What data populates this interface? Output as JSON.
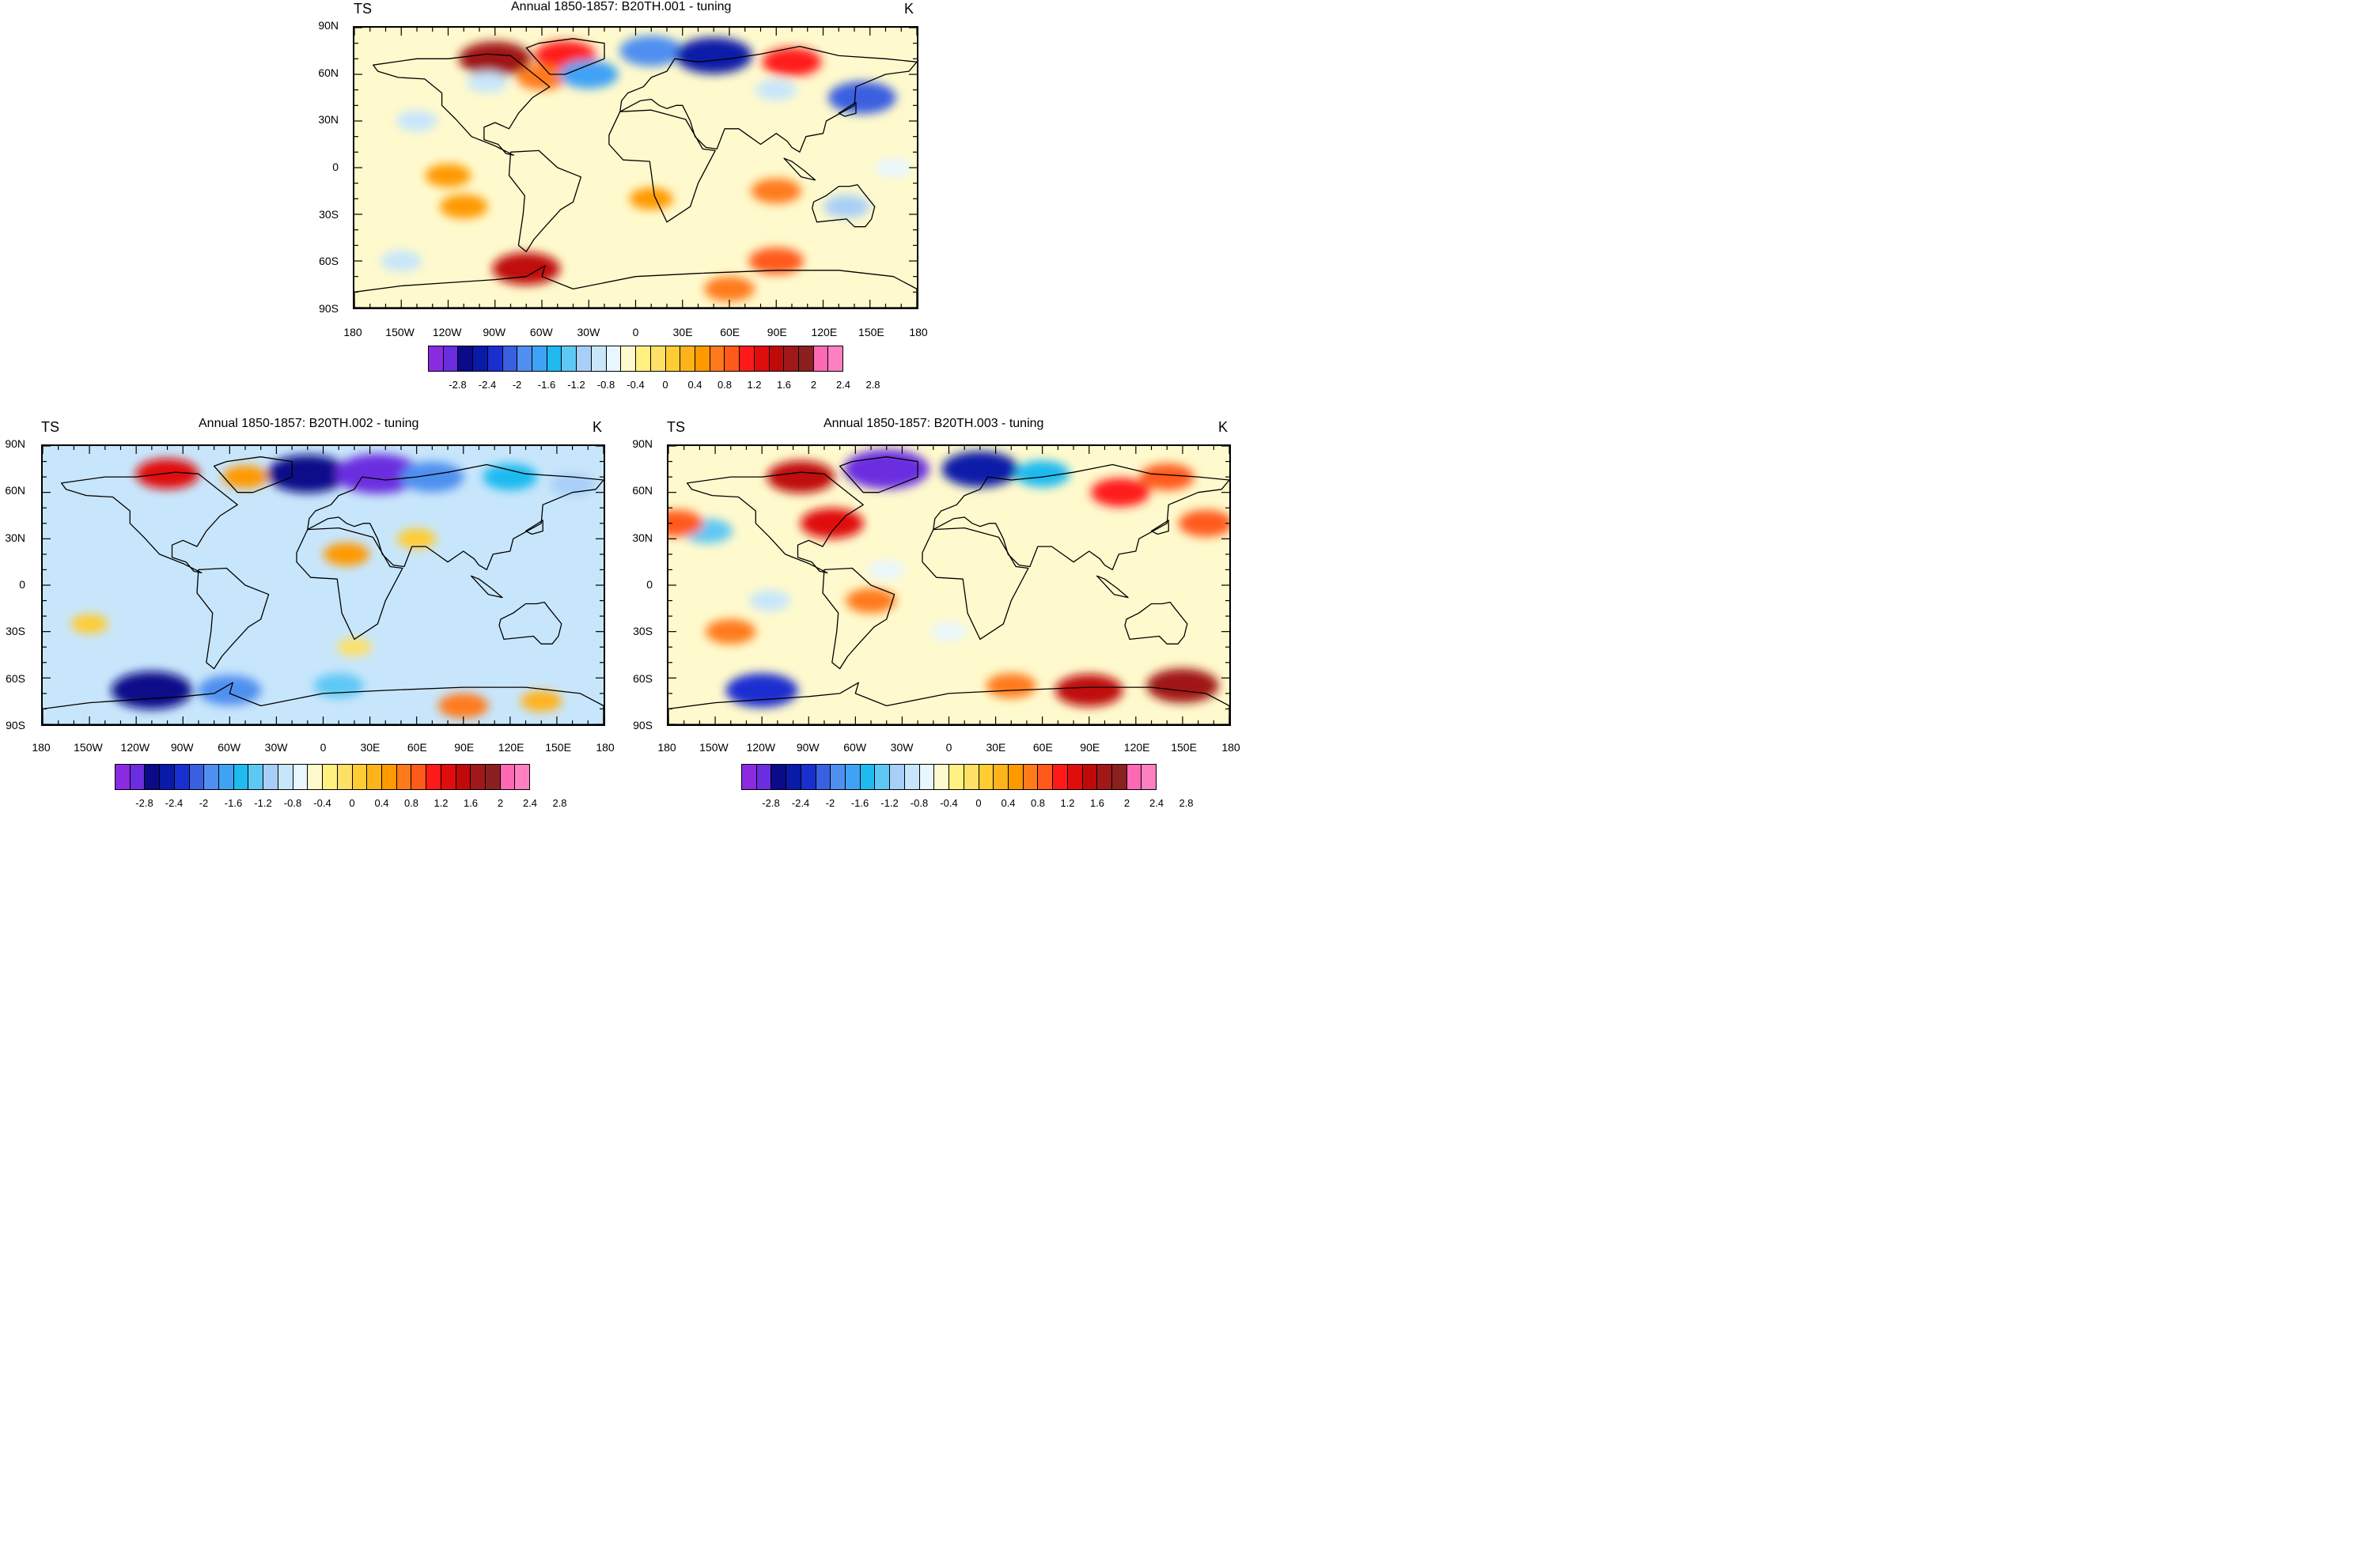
{
  "figure": {
    "colormap": [
      "#8a2be2",
      "#6a2de0",
      "#0a0a8a",
      "#0a1aa8",
      "#1a2fd0",
      "#3a5fe0",
      "#4f8ff0",
      "#3fa3f5",
      "#1fbaf0",
      "#5ec8f5",
      "#a8cff8",
      "#c8e6fb",
      "#e8f6fd",
      "#fffacd",
      "#fff080",
      "#ffe066",
      "#ffcc33",
      "#ffb31a",
      "#ff9900",
      "#ff7a1a",
      "#ff5a1a",
      "#ff1a1a",
      "#e00d0d",
      "#c00a0a",
      "#a01818",
      "#8b2020",
      "#ff69b4",
      "#ff80c0"
    ],
    "colorbar_labels": [
      "-2.8",
      "-2.4",
      "-2",
      "-1.6",
      "-1.2",
      "-0.8",
      "-0.4",
      "0",
      "0.4",
      "0.8",
      "1.2",
      "1.6",
      "2",
      "2.4",
      "2.8"
    ],
    "lat_labels": [
      "90N",
      "60N",
      "30N",
      "0",
      "30S",
      "60S",
      "90S"
    ],
    "lon_labels": [
      "180",
      "150W",
      "120W",
      "90W",
      "60W",
      "30W",
      "0",
      "30E",
      "60E",
      "90E",
      "120E",
      "150E",
      "180"
    ]
  },
  "panels": [
    {
      "id": "p1",
      "variable": "TS",
      "title": "Annual 1850-1857: B20TH.001 - tuning",
      "units": "K",
      "field": {
        "base": "#fffacd",
        "anomalies": [
          {
            "lon": -90,
            "lat": 70,
            "value": 2.0
          },
          {
            "lon": -45,
            "lat": 72,
            "value": 1.5
          },
          {
            "lon": -95,
            "lat": 55,
            "value": -0.6
          },
          {
            "lon": -60,
            "lat": 58,
            "value": 1.0
          },
          {
            "lon": -30,
            "lat": 60,
            "value": -1.4
          },
          {
            "lon": 10,
            "lat": 75,
            "value": -1.6
          },
          {
            "lon": 50,
            "lat": 72,
            "value": -2.2
          },
          {
            "lon": 100,
            "lat": 68,
            "value": 1.4
          },
          {
            "lon": 90,
            "lat": 50,
            "value": -0.6
          },
          {
            "lon": 145,
            "lat": 45,
            "value": -1.8
          },
          {
            "lon": -140,
            "lat": 30,
            "value": -0.6
          },
          {
            "lon": -120,
            "lat": -5,
            "value": 0.8
          },
          {
            "lon": -110,
            "lat": -25,
            "value": 0.9
          },
          {
            "lon": 10,
            "lat": -20,
            "value": 0.7
          },
          {
            "lon": 90,
            "lat": -15,
            "value": 1.0
          },
          {
            "lon": 135,
            "lat": -25,
            "value": -0.8
          },
          {
            "lon": -70,
            "lat": -65,
            "value": 1.8
          },
          {
            "lon": 90,
            "lat": -60,
            "value": 1.2
          },
          {
            "lon": 60,
            "lat": -78,
            "value": 1.0
          },
          {
            "lon": -150,
            "lat": -60,
            "value": -0.6
          },
          {
            "lon": 165,
            "lat": 0,
            "value": -0.4
          }
        ]
      }
    },
    {
      "id": "p2",
      "variable": "TS",
      "title": "Annual 1850-1857: B20TH.002 - tuning",
      "units": "K",
      "field": {
        "base": "#c8e6fb",
        "anomalies": [
          {
            "lon": -100,
            "lat": 72,
            "value": 1.6
          },
          {
            "lon": -50,
            "lat": 70,
            "value": 0.8
          },
          {
            "lon": -10,
            "lat": 72,
            "value": -2.4
          },
          {
            "lon": 35,
            "lat": 72,
            "value": -2.6
          },
          {
            "lon": 70,
            "lat": 70,
            "value": -1.6
          },
          {
            "lon": 120,
            "lat": 70,
            "value": -1.2
          },
          {
            "lon": 160,
            "lat": 65,
            "value": -0.8
          },
          {
            "lon": 15,
            "lat": 20,
            "value": 0.8
          },
          {
            "lon": 60,
            "lat": 30,
            "value": 0.5
          },
          {
            "lon": -150,
            "lat": -25,
            "value": 0.4
          },
          {
            "lon": 20,
            "lat": -40,
            "value": 0.3
          },
          {
            "lon": -110,
            "lat": -68,
            "value": -2.4
          },
          {
            "lon": -60,
            "lat": -68,
            "value": -1.6
          },
          {
            "lon": 10,
            "lat": -65,
            "value": -1.0
          },
          {
            "lon": 90,
            "lat": -78,
            "value": 1.0
          },
          {
            "lon": 140,
            "lat": -75,
            "value": 0.6
          },
          {
            "lon": 140,
            "lat": -25,
            "value": -0.6
          }
        ]
      }
    },
    {
      "id": "p3",
      "variable": "TS",
      "title": "Annual 1850-1857: B20TH.003 - tuning",
      "units": "K",
      "field": {
        "base": "#fffacd",
        "anomalies": [
          {
            "lon": -95,
            "lat": 70,
            "value": 1.8
          },
          {
            "lon": -40,
            "lat": 75,
            "value": -2.6
          },
          {
            "lon": 20,
            "lat": 75,
            "value": -2.2
          },
          {
            "lon": 60,
            "lat": 72,
            "value": -1.2
          },
          {
            "lon": 140,
            "lat": 70,
            "value": 1.2
          },
          {
            "lon": 110,
            "lat": 60,
            "value": 1.4
          },
          {
            "lon": -75,
            "lat": 40,
            "value": 1.6
          },
          {
            "lon": -155,
            "lat": 35,
            "value": -1.0
          },
          {
            "lon": -175,
            "lat": 40,
            "value": 1.2
          },
          {
            "lon": 165,
            "lat": 40,
            "value": 1.2
          },
          {
            "lon": -140,
            "lat": -30,
            "value": 1.0
          },
          {
            "lon": -115,
            "lat": -10,
            "value": -0.6
          },
          {
            "lon": -50,
            "lat": -10,
            "value": 1.0
          },
          {
            "lon": -40,
            "lat": 10,
            "value": -0.4
          },
          {
            "lon": -120,
            "lat": -68,
            "value": -2.0
          },
          {
            "lon": 90,
            "lat": -68,
            "value": 1.8
          },
          {
            "lon": 150,
            "lat": -65,
            "value": 2.0
          },
          {
            "lon": 40,
            "lat": -65,
            "value": 1.0
          },
          {
            "lon": 0,
            "lat": -30,
            "value": -0.4
          }
        ]
      }
    }
  ]
}
